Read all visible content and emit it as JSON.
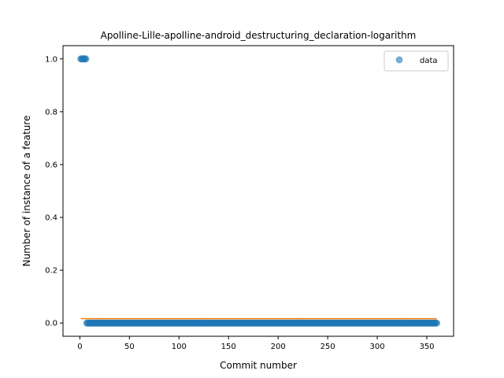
{
  "chart_data": {
    "type": "scatter",
    "title": "Apolline-Lille-apolline-android_destructuring_declaration-logarithm",
    "xlabel": "Commit number",
    "ylabel": "Number of instance of a feature",
    "xlim": [
      -17,
      377
    ],
    "ylim": [
      -0.05,
      1.05
    ],
    "x_ticks": [
      0,
      50,
      100,
      150,
      200,
      250,
      300,
      350
    ],
    "y_ticks": [
      0.0,
      0.2,
      0.4,
      0.6,
      0.8,
      1.0
    ],
    "x_tick_labels": [
      "0",
      "50",
      "100",
      "150",
      "200",
      "250",
      "300",
      "350"
    ],
    "y_tick_labels": [
      "0.0",
      "0.2",
      "0.4",
      "0.6",
      "0.8",
      "1.0"
    ],
    "grid": false,
    "legend": {
      "position": "top-right",
      "entries": [
        "data"
      ]
    },
    "series": [
      {
        "name": "data",
        "kind": "scatter",
        "color": "#1f77b4",
        "segments": [
          {
            "x_start": 1,
            "x_end": 6,
            "y": 1.0
          },
          {
            "x_start": 7,
            "x_end": 360,
            "y": 0.0
          }
        ]
      },
      {
        "kind": "line",
        "color": "#ff7f0e",
        "x": [
          1,
          360
        ],
        "y": [
          0.0166,
          0.0166
        ]
      }
    ]
  }
}
